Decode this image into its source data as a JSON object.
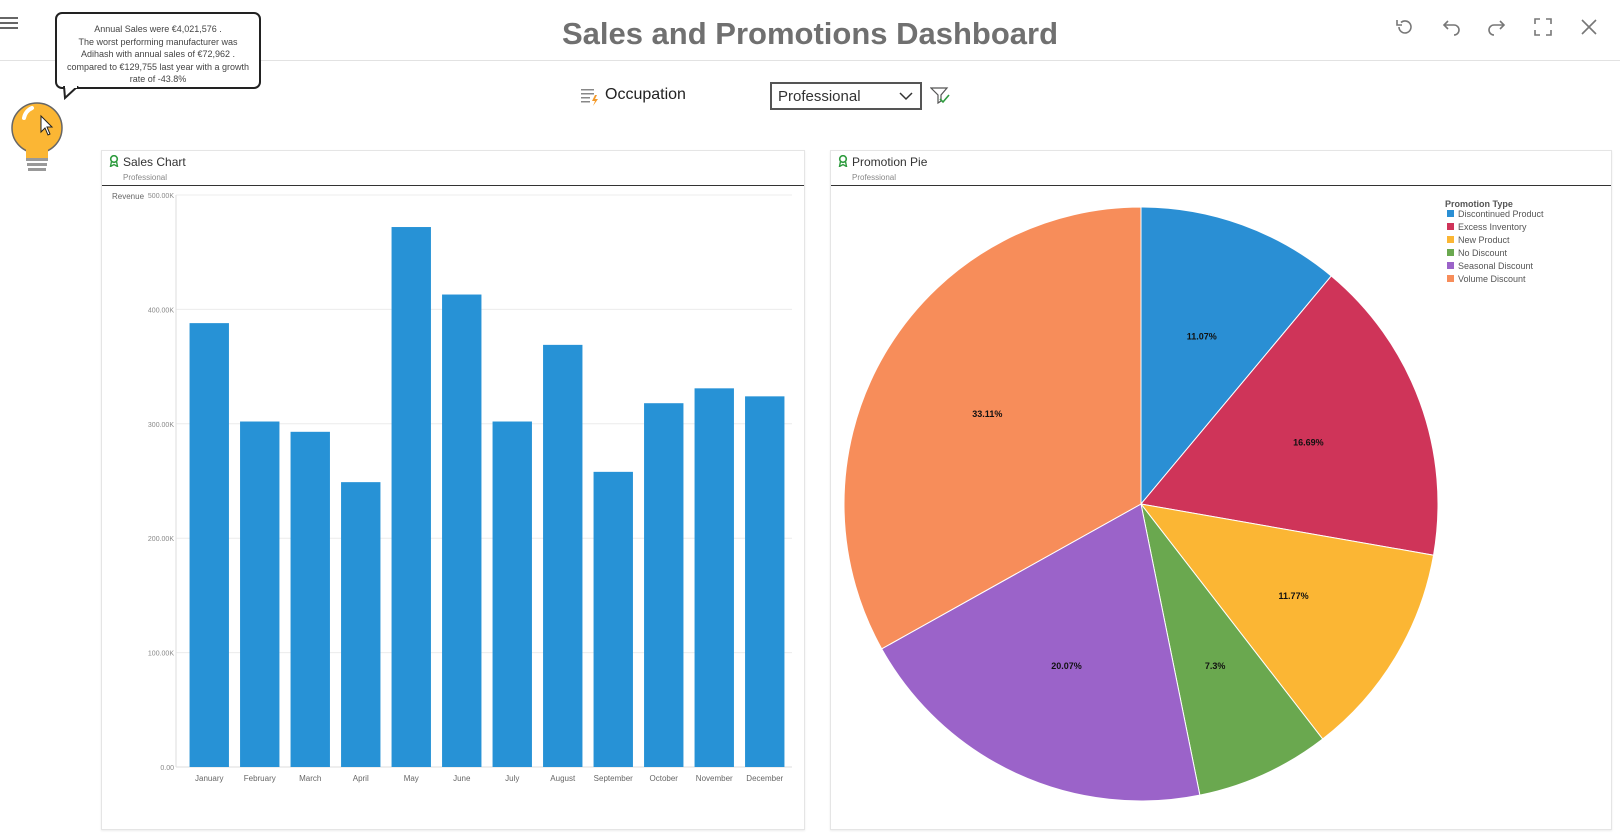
{
  "header": {
    "title": "Sales and Promotions Dashboard"
  },
  "insight": {
    "lines": [
      "Annual Sales were €4,021,576 .",
      "The worst performing manufacturer was",
      "Adihash  with annual sales of €72,962 .",
      "compared to €129,755  last year with a growth",
      "rate of -43.8%"
    ]
  },
  "filter": {
    "label": "Occupation",
    "selected": "Professional"
  },
  "sales_panel": {
    "title": "Sales Chart",
    "subtitle": "Professional"
  },
  "pie_panel": {
    "title": "Promotion Pie",
    "subtitle": "Professional"
  },
  "colors": {
    "bar": "#2792d6",
    "title": "#707070",
    "ribbon": "#2e9b3e"
  },
  "icons": [
    "menu-icon",
    "reset-icon",
    "undo-icon",
    "redo-icon",
    "fullscreen-icon",
    "close-icon",
    "lightbulb-icon",
    "occupation-filter-icon",
    "chevron-down-icon",
    "filter-check-icon",
    "ribbon-icon"
  ],
  "chart_data": [
    {
      "type": "bar",
      "ylabel": "Revenue",
      "categories": [
        "January",
        "February",
        "March",
        "April",
        "May",
        "June",
        "July",
        "August",
        "September",
        "October",
        "November",
        "December"
      ],
      "values": [
        388000,
        302000,
        293000,
        249000,
        472000,
        413000,
        302000,
        369000,
        258000,
        318000,
        331000,
        324000
      ],
      "ylim": [
        0,
        500000
      ],
      "yticks": [
        "0.00",
        "100.00K",
        "200.00K",
        "300.00K",
        "400.00K",
        "500.00K"
      ],
      "grid": true
    },
    {
      "type": "pie",
      "legend_title": "Promotion Type",
      "legend_position": "top-right",
      "slices": [
        {
          "label": "Discontinued Product",
          "value": 11.07,
          "display": "11.07%",
          "color": "#2a8fd4"
        },
        {
          "label": "Excess Inventory",
          "value": 16.69,
          "display": "16.69%",
          "color": "#cf3459"
        },
        {
          "label": "New Product",
          "value": 11.77,
          "display": "11.77%",
          "color": "#fbb634"
        },
        {
          "label": "No Discount",
          "value": 7.3,
          "display": "7.3%",
          "color": "#6aa84f"
        },
        {
          "label": "Seasonal Discount",
          "value": 20.07,
          "display": "20.07%",
          "color": "#9b63c9"
        },
        {
          "label": "Volume Discount",
          "value": 33.11,
          "display": "33.11%",
          "color": "#f78d5a"
        }
      ]
    }
  ]
}
